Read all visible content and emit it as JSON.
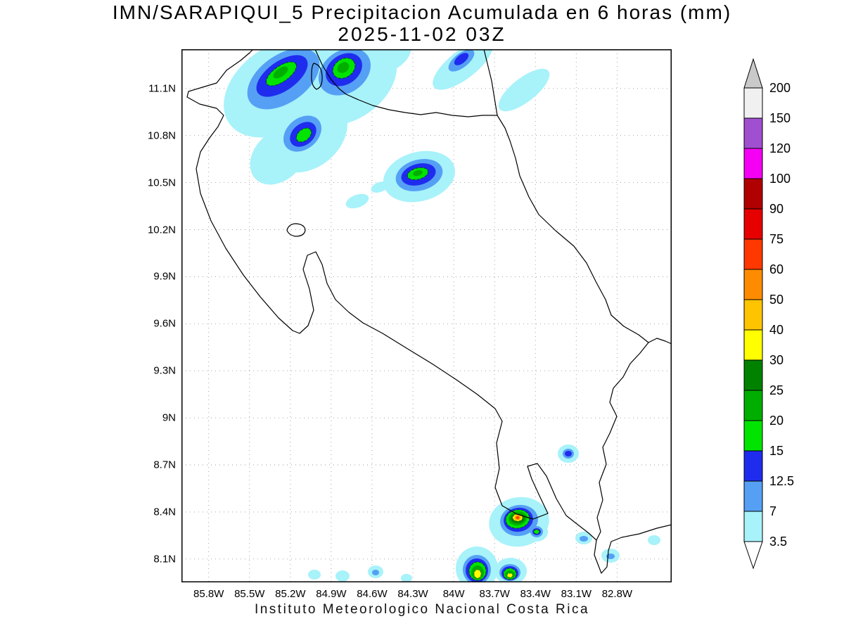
{
  "title": {
    "line1": "IMN/SARAPIQUI_5 Precipitacion Acumulada en 6 horas (mm)",
    "line2": "2025-11-02 03Z"
  },
  "footer": "Instituto Meteorologico Nacional Costa Rica",
  "axes": {
    "lat_ticks": [
      "11.1N",
      "10.8N",
      "10.5N",
      "10.2N",
      "9.9N",
      "9.6N",
      "9.3N",
      "9N",
      "8.7N",
      "8.4N",
      "8.1N"
    ],
    "lon_ticks": [
      "85.8W",
      "85.5W",
      "85.2W",
      "84.9W",
      "84.6W",
      "84.3W",
      "84W",
      "83.7W",
      "83.4W",
      "83.1W",
      "82.8W"
    ]
  },
  "colorbar": {
    "boundaries": [
      "200",
      "150",
      "120",
      "100",
      "90",
      "75",
      "60",
      "50",
      "40",
      "30",
      "25",
      "20",
      "15",
      "12.5",
      "7",
      "3.5"
    ],
    "segment_colors": [
      "#f0f0f0",
      "#a04fd0",
      "#f500f5",
      "#b00000",
      "#e60000",
      "#ff3800",
      "#ff8c00",
      "#ffc400",
      "#ffff00",
      "#008200",
      "#00ae00",
      "#00e400",
      "#1f2cee",
      "#55a0f5",
      "#a8f2fa"
    ],
    "above_color": "#c9c9c9",
    "below_color": "#ffffff"
  },
  "chart_data": {
    "type": "heatmap",
    "title": "IMN/SARAPIQUI_5 Precipitacion Acumulada en 6 horas (mm)",
    "valid_time": "2025-11-02 03Z",
    "units": "mm",
    "region": "Costa Rica",
    "lon_range": [
      "86W",
      "82.4W"
    ],
    "lat_range": [
      "7.95N",
      "11.35N"
    ],
    "scale_levels_mm": [
      3.5,
      7,
      12.5,
      15,
      20,
      25,
      30,
      40,
      50,
      60,
      75,
      90,
      100,
      120,
      150,
      200
    ],
    "features": [
      {
        "label": "NW band core west (Guanacaste / Nicaragua border)",
        "lon": "85.25W",
        "lat": "11.2N",
        "peak_mm": "20-25"
      },
      {
        "label": "NW band core east",
        "lon": "84.8W",
        "lat": "11.2N",
        "peak_mm": "20-25"
      },
      {
        "label": "NW band core south",
        "lon": "85.1W",
        "lat": "10.8N",
        "peak_mm": "15-20"
      },
      {
        "label": "Northern plains cell",
        "lon": "84.26W",
        "lat": "10.56N",
        "peak_mm": "15-20"
      },
      {
        "label": "South Pacific cell near Golfo Dulce",
        "lon": "83.53W",
        "lat": "8.36N",
        "peak_mm": "60-75"
      },
      {
        "label": "Southern border cell west",
        "lon": "83.83W",
        "lat": "8.0N",
        "peak_mm": "30-40"
      },
      {
        "label": "Southern border cell east",
        "lon": "83.59W",
        "lat": "8.0N",
        "peak_mm": "30-40"
      },
      {
        "label": "Coastal dot east of Golfo Dulce",
        "lon": "83.16W",
        "lat": "8.77N",
        "peak_mm": "12.5-15"
      }
    ]
  }
}
